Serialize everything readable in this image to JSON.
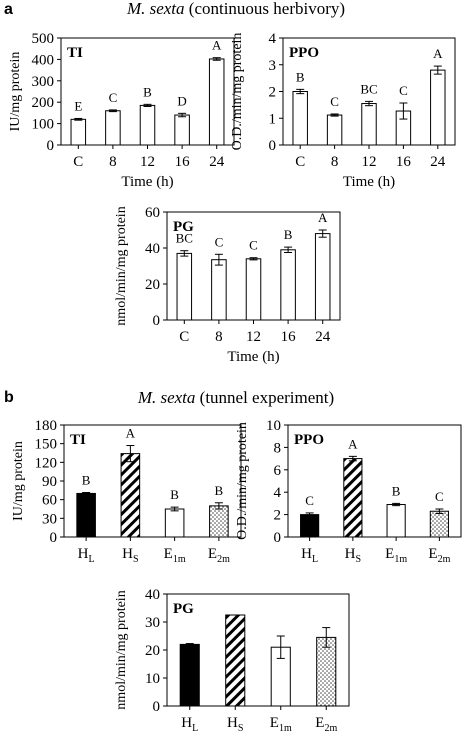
{
  "panels": [
    {
      "letter": "a",
      "title_italic": "M. sexta",
      "title_rest": "(continuous herbivory)"
    },
    {
      "letter": "b",
      "title_italic": "M. sexta",
      "title_rest": "(tunnel experiment)"
    }
  ],
  "colors": {
    "solid": "#000000",
    "open": "#ffffff",
    "axis": "#000000"
  },
  "chart_data": [
    {
      "type": "bar",
      "panel": "a",
      "label": "TI",
      "categories": [
        "C",
        "8",
        "12",
        "16",
        "24"
      ],
      "values": [
        120,
        160,
        185,
        140,
        402
      ],
      "errors": [
        4,
        4,
        5,
        8,
        6
      ],
      "letters": [
        "E",
        "C",
        "B",
        "D",
        "A"
      ],
      "fills": [
        "open",
        "open",
        "open",
        "open",
        "open"
      ],
      "xlabel": "Time (h)",
      "ylabel": "IU/mg protein",
      "ylim": [
        0,
        500
      ],
      "yticks": [
        "0",
        "100",
        "200",
        "300",
        "400",
        "500"
      ]
    },
    {
      "type": "bar",
      "panel": "a",
      "label": "PPO",
      "categories": [
        "C",
        "8",
        "12",
        "16",
        "24"
      ],
      "values": [
        2.0,
        1.12,
        1.55,
        1.27,
        2.8
      ],
      "errors": [
        0.08,
        0.04,
        0.08,
        0.3,
        0.15
      ],
      "letters": [
        "B",
        "C",
        "BC",
        "C",
        "A"
      ],
      "fills": [
        "open",
        "open",
        "open",
        "open",
        "open"
      ],
      "xlabel": "Time (h)",
      "ylabel": "O.D./min/mg protein",
      "ylim": [
        0,
        4
      ],
      "yticks": [
        "0",
        "1",
        "2",
        "3",
        "4"
      ]
    },
    {
      "type": "bar",
      "panel": "a",
      "label": "PG",
      "categories": [
        "C",
        "8",
        "12",
        "16",
        "24"
      ],
      "values": [
        37,
        33.5,
        34,
        39,
        48
      ],
      "errors": [
        1.5,
        3,
        0.6,
        1.5,
        2
      ],
      "letters": [
        "BC",
        "C",
        "C",
        "B",
        "A"
      ],
      "fills": [
        "open",
        "open",
        "open",
        "open",
        "open"
      ],
      "xlabel": "Time (h)",
      "ylabel": "nmol/min/mg protein",
      "ylim": [
        0,
        60
      ],
      "yticks": [
        "0",
        "20",
        "40",
        "60"
      ]
    },
    {
      "type": "bar",
      "panel": "b",
      "label": "TI",
      "categories": [
        {
          "base": "H",
          "sub": "L"
        },
        {
          "base": "H",
          "sub": "S"
        },
        {
          "base": "E",
          "sub": "1m"
        },
        {
          "base": "E",
          "sub": "2m"
        }
      ],
      "values": [
        70,
        134,
        45,
        50
      ],
      "errors": [
        1.5,
        13,
        3,
        5
      ],
      "letters": [
        "B",
        "A",
        "B",
        "B"
      ],
      "fills": [
        "solid",
        "hatch",
        "open",
        "dots"
      ],
      "xlabel": "",
      "ylabel": "IU/mg protein",
      "ylim": [
        0,
        180
      ],
      "yticks": [
        "0",
        "30",
        "60",
        "90",
        "120",
        "150",
        "180"
      ]
    },
    {
      "type": "bar",
      "panel": "b",
      "label": "PPO",
      "categories": [
        {
          "base": "H",
          "sub": "L"
        },
        {
          "base": "H",
          "sub": "S"
        },
        {
          "base": "E",
          "sub": "1m"
        },
        {
          "base": "E",
          "sub": "2m"
        }
      ],
      "values": [
        2.0,
        7.0,
        2.9,
        2.3
      ],
      "errors": [
        0.15,
        0.2,
        0.1,
        0.2
      ],
      "letters": [
        "C",
        "A",
        "B",
        "C"
      ],
      "fills": [
        "solid",
        "hatch",
        "open",
        "dots"
      ],
      "xlabel": "",
      "ylabel": "O.D./min/mg protein",
      "ylim": [
        0,
        10
      ],
      "yticks": [
        "0",
        "2",
        "4",
        "6",
        "8",
        "10"
      ]
    },
    {
      "type": "bar",
      "panel": "b",
      "label": "PG",
      "categories": [
        {
          "base": "H",
          "sub": "L"
        },
        {
          "base": "H",
          "sub": "S"
        },
        {
          "base": "E",
          "sub": "1m"
        },
        {
          "base": "E",
          "sub": "2m"
        }
      ],
      "values": [
        22,
        32.5,
        21,
        24.5
      ],
      "errors": [
        0.3,
        0,
        4,
        3.5
      ],
      "letters": [
        "",
        "",
        "",
        ""
      ],
      "fills": [
        "solid",
        "hatch",
        "open",
        "dots"
      ],
      "xlabel": "",
      "ylabel": "nmol/min/mg protein",
      "ylim": [
        0,
        40
      ],
      "yticks": [
        "0",
        "10",
        "20",
        "30",
        "40"
      ]
    }
  ]
}
